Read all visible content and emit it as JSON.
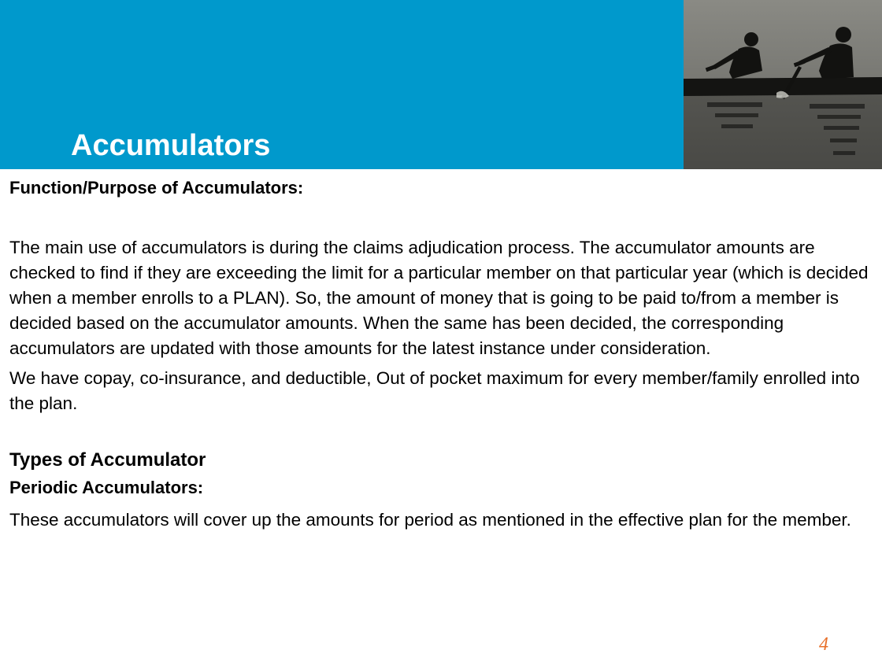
{
  "slide": {
    "title": "Accumulators",
    "page_number": "4",
    "header_image": "rowers-silhouette-photo",
    "colors": {
      "header_band": "#0099cc",
      "title": "#ffffff",
      "page_number": "#e8702a",
      "body_text": "#000000"
    }
  },
  "body": {
    "heading_purpose": "Function/Purpose of Accumulators:",
    "paragraph_main_use": "The main use of accumulators is during the claims adjudication process. The accumulator amounts are checked to find if they are exceeding the limit for a particular member on that particular year (which is decided when a member enrolls to a PLAN). So, the amount of money that is going to be paid to/from a member is decided based on the accumulator amounts. When the same has been decided, the corresponding accumulators are updated with those amounts for the latest instance under consideration.",
    "paragraph_types_list": "We have copay, co-insurance, and deductible, Out of pocket maximum for every member/family enrolled into the plan.",
    "heading_types": "Types of Accumulator",
    "heading_periodic": "Periodic Accumulators:",
    "paragraph_periodic": "These accumulators will cover up the amounts for period as mentioned in the effective plan for the member."
  }
}
